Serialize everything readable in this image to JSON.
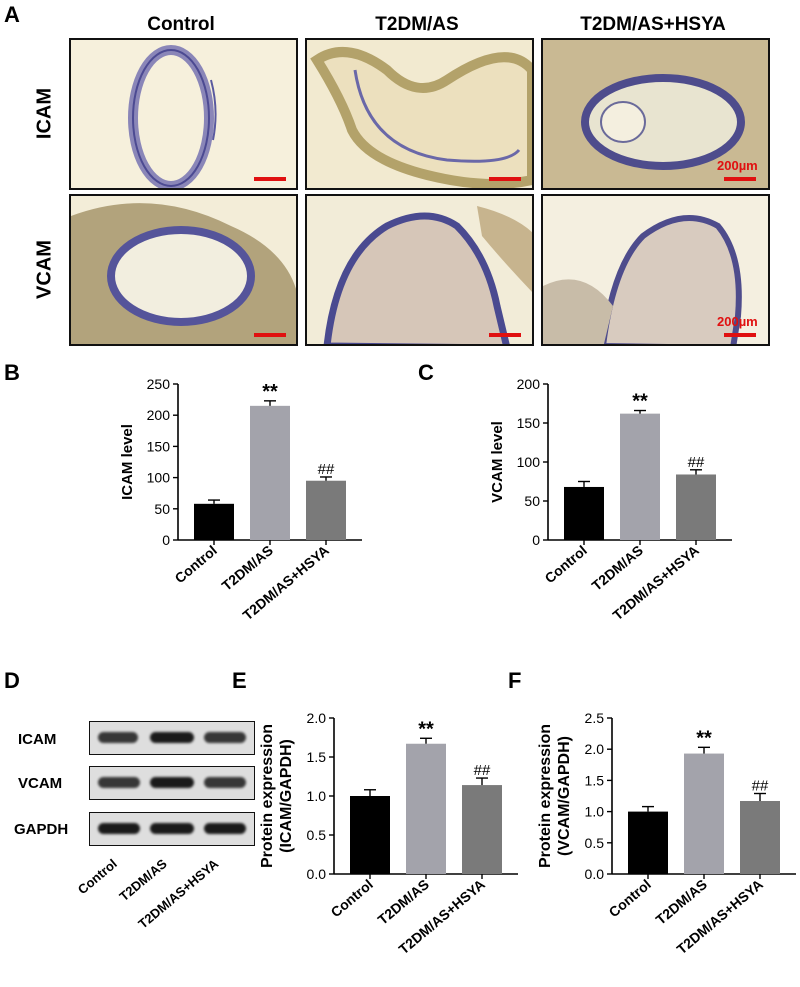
{
  "panels": {
    "a": "A",
    "b": "B",
    "c": "C",
    "d": "D",
    "e": "E",
    "f": "F"
  },
  "panel_a": {
    "columns": [
      "Control",
      "T2DM/AS",
      "T2DM/AS+HSYA"
    ],
    "rows": [
      "ICAM",
      "VCAM"
    ],
    "scale_label": "200µm"
  },
  "panel_d": {
    "rows": [
      "ICAM",
      "VCAM",
      "GAPDH"
    ],
    "lanes": [
      "Control",
      "T2DM/AS",
      "T2DM/AS+HSYA"
    ]
  },
  "colors": {
    "control": "#000000",
    "model": "#a3a3ab",
    "treated": "#7a7a7a",
    "scale": "#e01010"
  },
  "chart_data": [
    {
      "id": "B",
      "type": "bar",
      "categories": [
        "Control",
        "T2DM/AS",
        "T2DM/AS+HSYA"
      ],
      "values": [
        58,
        215,
        95
      ],
      "errors": [
        6,
        8,
        6
      ],
      "annotations": [
        "",
        "**",
        "##"
      ],
      "ylabel": "ICAM level",
      "ylim": [
        0,
        250
      ],
      "yticks": [
        "0",
        "50",
        "100",
        "150",
        "200",
        "250"
      ],
      "ytick_values": [
        0,
        50,
        100,
        150,
        200,
        250
      ]
    },
    {
      "id": "C",
      "type": "bar",
      "categories": [
        "Control",
        "T2DM/AS",
        "T2DM/AS+HSYA"
      ],
      "values": [
        68,
        162,
        84
      ],
      "errors": [
        7,
        4,
        6
      ],
      "annotations": [
        "",
        "**",
        "##"
      ],
      "ylabel": "VCAM level",
      "ylim": [
        0,
        200
      ],
      "yticks": [
        "0",
        "50",
        "100",
        "150",
        "200"
      ],
      "ytick_values": [
        0,
        50,
        100,
        150,
        200
      ]
    },
    {
      "id": "E",
      "type": "bar",
      "categories": [
        "Control",
        "T2DM/AS",
        "T2DM/AS+HSYA"
      ],
      "values": [
        1.0,
        1.67,
        1.14
      ],
      "errors": [
        0.08,
        0.07,
        0.09
      ],
      "annotations": [
        "",
        "**",
        "##"
      ],
      "ylabel": "Protein expression\n(ICAM/GAPDH)",
      "ylim": [
        0,
        2.0
      ],
      "yticks": [
        "0.0",
        "0.5",
        "1.0",
        "1.5",
        "2.0"
      ],
      "ytick_values": [
        0,
        0.5,
        1.0,
        1.5,
        2.0
      ]
    },
    {
      "id": "F",
      "type": "bar",
      "categories": [
        "Control",
        "T2DM/AS",
        "T2DM/AS+HSYA"
      ],
      "values": [
        1.0,
        1.93,
        1.17
      ],
      "errors": [
        0.08,
        0.1,
        0.12
      ],
      "annotations": [
        "",
        "**",
        "##"
      ],
      "ylabel": "Protein expression\n(VCAM/GAPDH)",
      "ylim": [
        0,
        2.5
      ],
      "yticks": [
        "0.0",
        "0.5",
        "1.0",
        "1.5",
        "2.0",
        "2.5"
      ],
      "ytick_values": [
        0,
        0.5,
        1.0,
        1.5,
        2.0,
        2.5
      ]
    }
  ]
}
